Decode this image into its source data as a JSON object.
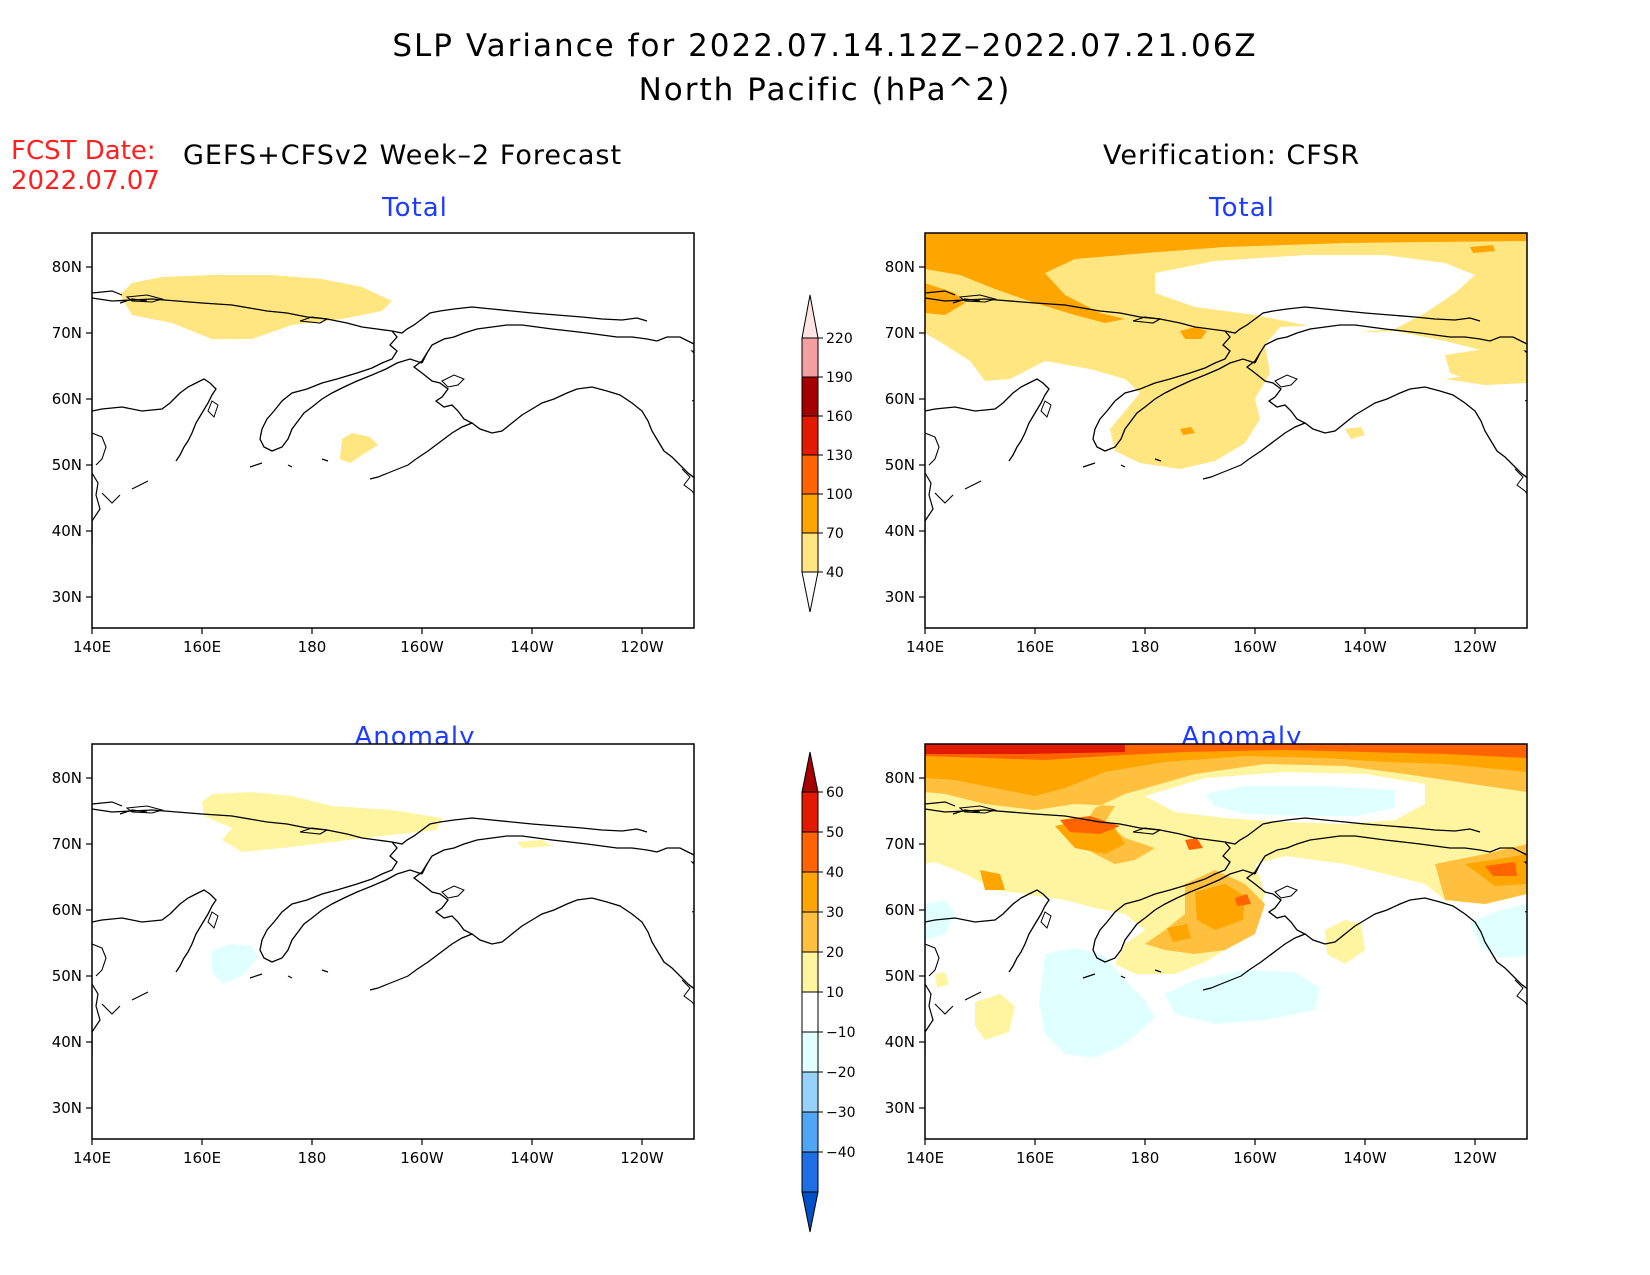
{
  "title": {
    "line1": "SLP Variance for 2022.07.14.12Z–2022.07.21.06Z",
    "line2": "North Pacific (hPa^2)"
  },
  "fcst": {
    "label": "FCST Date:",
    "date": "2022.07.07"
  },
  "headers": {
    "left": "GEFS+CFSv2 Week–2 Forecast",
    "right": "Verification: CFSR"
  },
  "panels": {
    "fcst_total": {
      "label": "Total"
    },
    "verif_total": {
      "label": "Total"
    },
    "fcst_anom": {
      "label": "Anomaly"
    },
    "verif_anom": {
      "label": "Anomaly"
    }
  },
  "axes": {
    "lon_labels": [
      "140E",
      "160E",
      "180",
      "160W",
      "140W",
      "120W"
    ],
    "lat_labels": [
      "80N",
      "70N",
      "60N",
      "50N",
      "40N",
      "30N"
    ]
  },
  "colorbars": {
    "total": {
      "levels": [
        "40",
        "70",
        "100",
        "130",
        "160",
        "190",
        "220"
      ],
      "colors": [
        "#ffe680",
        "#ffa500",
        "#ff6400",
        "#e11a00",
        "#a50000",
        "#f4a0a0",
        "#ffe4e4"
      ]
    },
    "anomaly": {
      "levels": [
        "60",
        "50",
        "40",
        "30",
        "20",
        "10",
        "−10",
        "−20",
        "−30",
        "−40"
      ],
      "colors": [
        "#a50000",
        "#e11a00",
        "#ff6400",
        "#ffa500",
        "#ffc040",
        "#fff5a0",
        "#ffffff",
        "#e0ffff",
        "#96d2fa",
        "#50a5f5",
        "#1e6ee6",
        "#0050c8"
      ]
    }
  }
}
